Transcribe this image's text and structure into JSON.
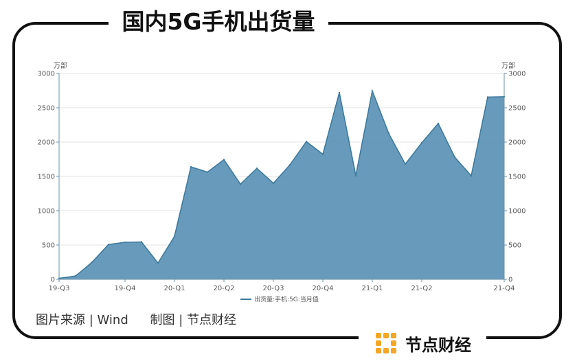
{
  "title": "国内5G手机出货量",
  "source_line": {
    "source": "图片来源 | Wind",
    "credit": "制图 | 节点财经"
  },
  "brand": {
    "name": "节点财经",
    "logo_icon": "dot-grid-logo-icon",
    "logo_color": "#f5a623"
  },
  "chart_data": {
    "type": "area",
    "title": "",
    "unit_left": "万部",
    "unit_right": "万部",
    "ylim": [
      0,
      3000
    ],
    "yticks": [
      0,
      500,
      1000,
      1500,
      2000,
      2500,
      3000
    ],
    "x": [
      "2019-07",
      "2019-08",
      "2019-09",
      "2019-10",
      "2019-11",
      "2019-12",
      "2020-01",
      "2020-02",
      "2020-03",
      "2020-04",
      "2020-05",
      "2020-06",
      "2020-07",
      "2020-08",
      "2020-09",
      "2020-10",
      "2020-11",
      "2020-12",
      "2021-01",
      "2021-02",
      "2021-03",
      "2021-04",
      "2021-05",
      "2021-06",
      "2021-07",
      "2021-08",
      "2021-09",
      "2021-10"
    ],
    "xtick_labels": [
      {
        "index": 0,
        "label": "19-Q3"
      },
      {
        "index": 4,
        "label": "19-Q4"
      },
      {
        "index": 7,
        "label": "20-Q1"
      },
      {
        "index": 10,
        "label": "20-Q2"
      },
      {
        "index": 13,
        "label": "20-Q3"
      },
      {
        "index": 16,
        "label": "20-Q4"
      },
      {
        "index": 19,
        "label": "21-Q1"
      },
      {
        "index": 22,
        "label": "21-Q2"
      },
      {
        "index": 27,
        "label": "21-Q4"
      }
    ],
    "series": [
      {
        "name": "出货量:手机:5G:当月值",
        "values": [
          15,
          48,
          249,
          507,
          539,
          545,
          237,
          626,
          1638,
          1562,
          1743,
          1387,
          1617,
          1400,
          1667,
          2007,
          1823,
          2721,
          1511,
          2744,
          2123,
          1679,
          1989,
          2271,
          1780,
          1509,
          2656,
          2661
        ]
      }
    ],
    "colors": {
      "area": "#5b93b5",
      "line": "#3d7a9e",
      "axis": "#6a8fa8",
      "grid": "#e3e3e3"
    },
    "grid": true,
    "legend_position": "bottom-center"
  }
}
